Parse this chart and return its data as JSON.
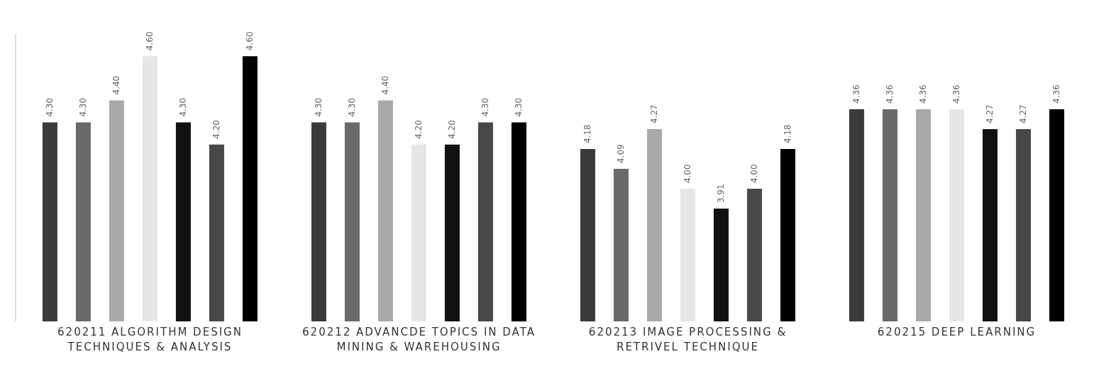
{
  "chart_data": {
    "type": "bar",
    "categories": [
      "620211 ALGORITHM DESIGN TECHNIQUES & ANALYSIS",
      "620212 ADVANCDE TOPICS IN DATA MINING & WAREHOUSING",
      "620213 IMAGE PROCESSING & RETRIVEL TECHNIQUE",
      "620215 DEEP LEARNING"
    ],
    "series": [
      {
        "color": "#3a3a3a",
        "values": [
          4.3,
          4.3,
          4.18,
          4.36
        ],
        "value_labels": [
          "4.30",
          "4.30",
          "4.18",
          "4.36"
        ]
      },
      {
        "color": "#6a6a6a",
        "values": [
          4.3,
          4.3,
          4.09,
          4.36
        ],
        "value_labels": [
          "4.30",
          "4.30",
          "4.09",
          "4.36"
        ]
      },
      {
        "color": "#a9a9a9",
        "values": [
          4.4,
          4.4,
          4.27,
          4.36
        ],
        "value_labels": [
          "4.40",
          "4.40",
          "4.27",
          "4.36"
        ]
      },
      {
        "color": "#e6e6e6",
        "values": [
          4.6,
          4.2,
          4.0,
          4.36
        ],
        "value_labels": [
          "4.60",
          "4.20",
          "4.00",
          "4.36"
        ]
      },
      {
        "color": "#111111",
        "values": [
          4.3,
          4.2,
          3.91,
          4.27
        ],
        "value_labels": [
          "4.30",
          "4.20",
          "3.91",
          "4.27"
        ]
      },
      {
        "color": "#474747",
        "values": [
          4.2,
          4.3,
          4.0,
          4.27
        ],
        "value_labels": [
          "4.20",
          "4.30",
          "4.00",
          "4.27"
        ]
      },
      {
        "color": "#000000",
        "values": [
          4.6,
          4.3,
          4.18,
          4.36
        ],
        "value_labels": [
          "4.60",
          "4.30",
          "4.18",
          "4.36"
        ]
      }
    ],
    "ylim": [
      3.4,
      4.7
    ],
    "grid": false,
    "legend": false
  }
}
